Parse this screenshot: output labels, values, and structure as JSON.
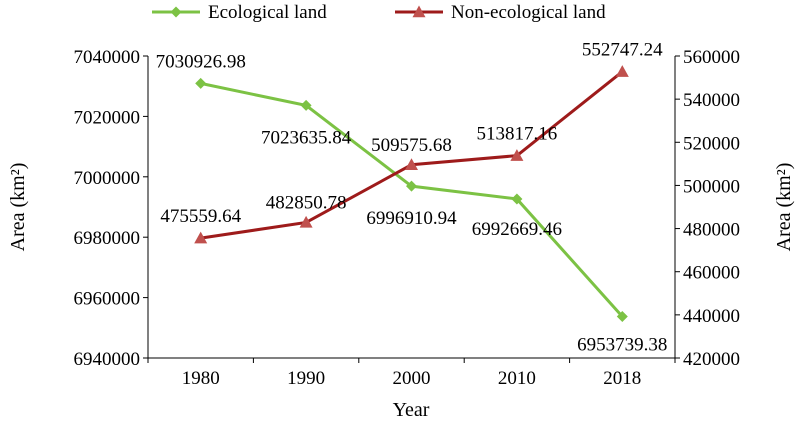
{
  "chart_data": {
    "type": "line",
    "x": [
      "1980",
      "1990",
      "2000",
      "2010",
      "2018"
    ],
    "xlabel": "Year",
    "ylabel_left": "Area (km²)",
    "ylabel_right": "Area (km²)",
    "ylim_left": [
      6940000,
      7040000
    ],
    "ylim_right": [
      420000,
      560000
    ],
    "yticks_left": [
      "6940000",
      "6960000",
      "6980000",
      "7000000",
      "7020000",
      "7040000"
    ],
    "yticks_right": [
      "420000",
      "440000",
      "460000",
      "480000",
      "500000",
      "520000",
      "540000",
      "560000"
    ],
    "grid": false,
    "legend_position": "top",
    "series": [
      {
        "name": "Ecological land",
        "axis": "left",
        "marker": "diamond",
        "color": "#7CC244",
        "values": [
          7030926.98,
          7023635.84,
          6996910.94,
          6992669.46,
          6953739.38
        ],
        "labels": [
          "7030926.98",
          "7023635.84",
          "6996910.94",
          "6992669.46",
          "6953739.38"
        ]
      },
      {
        "name": "Non-ecological land",
        "axis": "right",
        "marker": "triangle",
        "color": "#9E1B1B",
        "marker_color": "#C0504D",
        "values": [
          475559.64,
          482850.78,
          509575.68,
          513817.16,
          552747.24
        ],
        "labels": [
          "475559.64",
          "482850.78",
          "509575.68",
          "513817.16",
          "552747.24"
        ]
      }
    ]
  }
}
